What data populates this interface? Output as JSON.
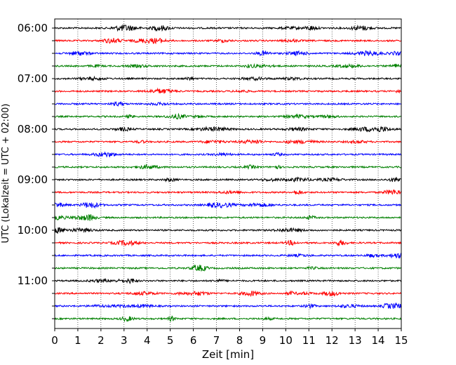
{
  "chart_data": {
    "type": "line",
    "subtype": "helicorder",
    "xlabel": "Zeit  [min]",
    "ylabel": "UTC (Lokalzeit = UTC + 02:00)",
    "xlim": [
      0,
      15
    ],
    "x_ticks": [
      "0",
      "1",
      "2",
      "3",
      "4",
      "5",
      "6",
      "7",
      "8",
      "9",
      "10",
      "11",
      "12",
      "13",
      "14",
      "15"
    ],
    "y_tick_labels": [
      "06:00",
      "07:00",
      "08:00",
      "09:00",
      "10:00",
      "11:00"
    ],
    "grid": "vertical dotted at each minute",
    "trace_colors": [
      "#000000",
      "#ff0000",
      "#0000ff",
      "#008000"
    ],
    "trace_interval_minutes": 15,
    "start_time": "06:00",
    "end_time": "12:00",
    "trace_count": 24
  }
}
